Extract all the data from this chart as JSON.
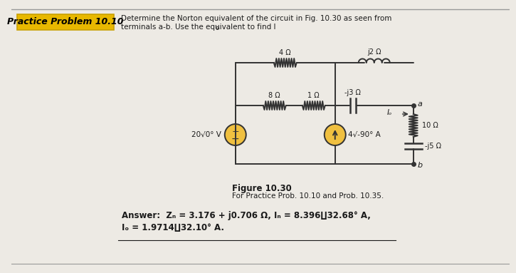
{
  "title_box_text": "Practice Problem 10.10",
  "title_box_bg": "#E8B800",
  "title_box_border": "#C8A000",
  "header_line1": "Determine the Norton equivalent of the circuit in Fig. 10.30 as seen from",
  "header_line2": "terminals a-b. Use the equivalent to find I",
  "header_line2_sub": "o",
  "figure_label": "Figure 10.30",
  "figure_caption": "For Practice Prob. 10.10 and Prob. 10.35.",
  "answer_line1_bold": "Answer: ",
  "answer_line1_rest": "Zₙ = 3.176 + j0.706 Ω, Iₙ = 8.396∐32.68° A,",
  "answer_line2": "Iₒ = 1.9714∐32.10° A.",
  "bg_color": "#EDEAE4",
  "label_4": "4 Ω",
  "label_j2": "j2 Ω",
  "label_8": "8 Ω",
  "label_1": "1 Ω",
  "label_j3": "-j3 Ω",
  "label_10": "10 Ω",
  "label_j5": "-j5 Ω",
  "label_V": "20√0° V",
  "label_I": "4√-90° A",
  "label_Io": "Iₒ",
  "label_a": "a",
  "label_b": "b",
  "wire_color": "#333333",
  "source_fill": "#F0C040",
  "text_color": "#1a1a1a"
}
